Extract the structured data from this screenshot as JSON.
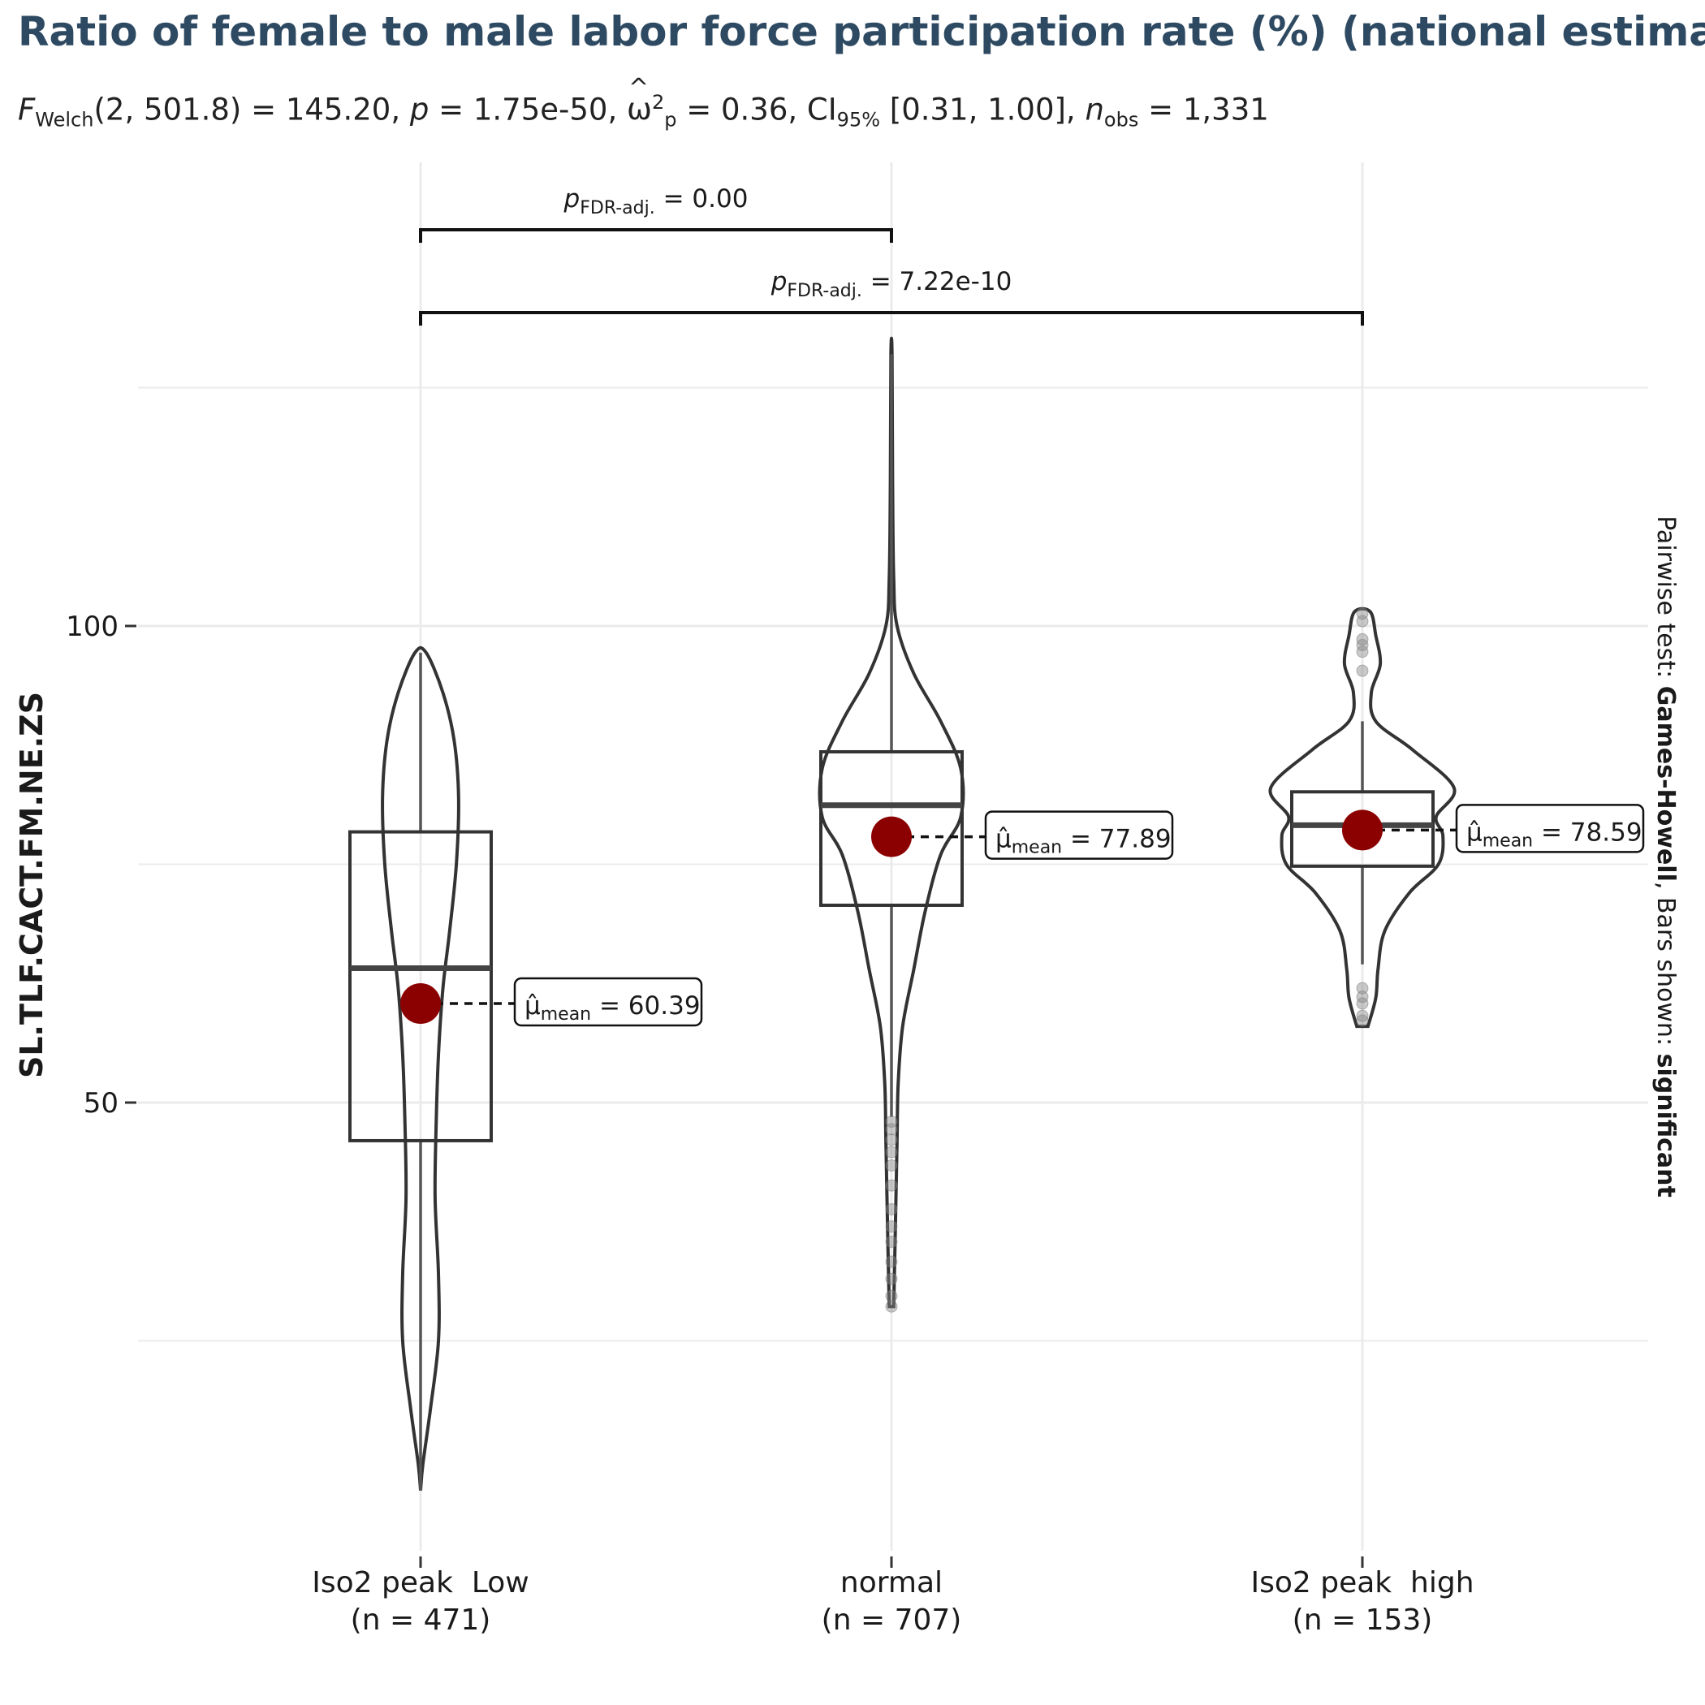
{
  "title": "Ratio of female to male labor force participation rate (%) (national estimate)",
  "subtitle": {
    "stat_symbol": "F",
    "stat_sub": "Welch",
    "df": "(2, 501.8) = 145.20, ",
    "p_symbol": "p",
    "p_text": " = 1.75e-50, ",
    "effect_symbol": "ω",
    "effect_sup": "2",
    "effect_sub": "p",
    "effect_text": " = 0.36, CI",
    "ci_sub": "95%",
    "ci_text": " [0.31, 1.00], ",
    "n_symbol": "n",
    "n_sub": "obs",
    "n_text": " = 1,331"
  },
  "side_caption": {
    "prefix": "Pairwise test: ",
    "test": "Games-Howell",
    "middle": ", Bars shown: ",
    "bars": "significant"
  },
  "chart_data": {
    "type": "violin-box",
    "ylabel": "SL.TLF.CACT.FM.NE.ZS",
    "ylim": [
      6,
      132
    ],
    "yticks": [
      50,
      100
    ],
    "grid": true,
    "categories": [
      {
        "label": "Iso2 peak  Low",
        "n_label": "(n = 471)",
        "box": {
          "q1": 46,
          "median": 64.1,
          "q3": 78.4
        },
        "whiskers": [
          9.3,
          97.2
        ],
        "mean": 60.39,
        "mean_label": "= 60.39",
        "outliers": [],
        "violin": [
          [
            9.3,
            0.0
          ],
          [
            12,
            0.02
          ],
          [
            18,
            0.09
          ],
          [
            25,
            0.16
          ],
          [
            32,
            0.16
          ],
          [
            40,
            0.13
          ],
          [
            48,
            0.14
          ],
          [
            55,
            0.16
          ],
          [
            62,
            0.2
          ],
          [
            68,
            0.26
          ],
          [
            75,
            0.32
          ],
          [
            82,
            0.34
          ],
          [
            88,
            0.3
          ],
          [
            93,
            0.2
          ],
          [
            97.2,
            0.05
          ]
        ]
      },
      {
        "label": "normal",
        "n_label": "(n = 707)",
        "box": {
          "q1": 70.7,
          "median": 81.2,
          "q3": 86.8
        },
        "whiskers": [
          48.5,
          128.5
        ],
        "mean": 77.89,
        "mean_label": "= 77.89",
        "outliers": [
          28.6,
          29.7,
          31.5,
          33.3,
          35.4,
          37.0,
          38.8,
          41.3,
          43.4,
          44.8,
          46.1,
          47.2,
          48.0
        ],
        "violin": [
          [
            28.6,
            0.02
          ],
          [
            34,
            0.03
          ],
          [
            40,
            0.04
          ],
          [
            46,
            0.05
          ],
          [
            52,
            0.06
          ],
          [
            58,
            0.1
          ],
          [
            64,
            0.2
          ],
          [
            70,
            0.3
          ],
          [
            76,
            0.44
          ],
          [
            80,
            0.62
          ],
          [
            85,
            0.62
          ],
          [
            90,
            0.44
          ],
          [
            95,
            0.2
          ],
          [
            100,
            0.05
          ],
          [
            105,
            0.02
          ],
          [
            115,
            0.01
          ],
          [
            128.5,
            0.005
          ]
        ]
      },
      {
        "label": "Iso2 peak  high",
        "n_label": "(n = 153)",
        "box": {
          "q1": 74.8,
          "median": 79.1,
          "q3": 82.6
        },
        "whiskers": [
          64.5,
          90
        ],
        "mean": 78.59,
        "mean_label": "= 78.59",
        "outliers": [
          58.6,
          59.1,
          60.4,
          61.1,
          62.0,
          95.3,
          97.3,
          98.0,
          98.6,
          100.5,
          101.3
        ],
        "violin": [
          [
            58,
            0.05
          ],
          [
            61,
            0.12
          ],
          [
            64,
            0.14
          ],
          [
            68,
            0.2
          ],
          [
            72,
            0.42
          ],
          [
            75,
            0.68
          ],
          [
            78,
            0.72
          ],
          [
            80,
            0.66
          ],
          [
            83,
            0.82
          ],
          [
            87,
            0.45
          ],
          [
            90,
            0.12
          ],
          [
            93,
            0.08
          ],
          [
            96,
            0.16
          ],
          [
            99,
            0.12
          ],
          [
            101.5,
            0.07
          ]
        ]
      }
    ],
    "comparisons": [
      {
        "from": 0,
        "to": 1,
        "p_symbol": "p",
        "p_sub": "FDR-adj.",
        "p_text": " = 0.00"
      },
      {
        "from": 0,
        "to": 2,
        "p_symbol": "p",
        "p_sub": "FDR-adj.",
        "p_text": " = 7.22e-10"
      }
    ],
    "mean_symbol": "μ̂",
    "mean_sub": "mean",
    "colors": {
      "mean_point": "#8B0000",
      "box": "#555555",
      "violin": "#333333",
      "grid": "#EBEBEB",
      "title": "#2E4A62"
    }
  }
}
